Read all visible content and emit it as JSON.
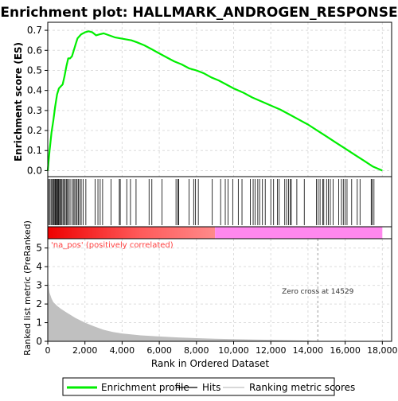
{
  "chart_data": {
    "type": "line",
    "title": "Enrichment plot: HALLMARK_ANDROGEN_RESPONSE",
    "colors": {
      "enrichment": "#00ee00",
      "hits": "#000000",
      "ranking": "#c0c0c0",
      "pos_band": "#ff0000",
      "neg_band": "#ff88ee",
      "zero_cross_line": "#9a9a9a",
      "pos_label": "#ff4040",
      "grid": "#dcdcdc"
    },
    "es_panel": {
      "ylabel": "Enrichment score (ES)",
      "ylim": [
        -0.03,
        0.74
      ],
      "yticks": [
        0.0,
        0.1,
        0.2,
        0.3,
        0.4,
        0.5,
        0.6,
        0.7
      ],
      "ytick_labels": [
        "0.0",
        "0.1",
        "0.2",
        "0.3",
        "0.4",
        "0.5",
        "0.6",
        "0.7"
      ],
      "x": [
        0,
        100,
        200,
        300,
        400,
        500,
        600,
        700,
        800,
        900,
        1000,
        1100,
        1200,
        1300,
        1400,
        1500,
        1600,
        1700,
        1800,
        1900,
        2000,
        2200,
        2400,
        2600,
        2800,
        3000,
        3300,
        3600,
        3900,
        4200,
        4500,
        4800,
        5200,
        5600,
        6000,
        6400,
        6800,
        7200,
        7600,
        8000,
        8400,
        8800,
        9200,
        9600,
        10000,
        10500,
        11000,
        11500,
        12000,
        12500,
        13000,
        13500,
        14000,
        14500,
        15000,
        15500,
        16000,
        16500,
        17000,
        17500,
        18000
      ],
      "y": [
        0.0,
        0.1,
        0.19,
        0.25,
        0.32,
        0.38,
        0.41,
        0.42,
        0.43,
        0.47,
        0.52,
        0.56,
        0.56,
        0.57,
        0.6,
        0.63,
        0.66,
        0.67,
        0.68,
        0.685,
        0.69,
        0.695,
        0.69,
        0.675,
        0.68,
        0.685,
        0.675,
        0.665,
        0.66,
        0.655,
        0.65,
        0.64,
        0.625,
        0.605,
        0.585,
        0.565,
        0.545,
        0.53,
        0.51,
        0.5,
        0.485,
        0.465,
        0.45,
        0.43,
        0.41,
        0.39,
        0.365,
        0.345,
        0.325,
        0.305,
        0.28,
        0.255,
        0.23,
        0.2,
        0.17,
        0.14,
        0.11,
        0.08,
        0.05,
        0.02,
        0.0
      ]
    },
    "hits": [
      50,
      120,
      180,
      240,
      300,
      340,
      390,
      430,
      470,
      520,
      560,
      600,
      650,
      700,
      760,
      820,
      880,
      940,
      1000,
      1060,
      1120,
      1200,
      1300,
      1380,
      1450,
      1520,
      1580,
      1650,
      1720,
      1800,
      1900,
      2050,
      2550,
      2700,
      2820,
      2950,
      3400,
      3850,
      3900,
      4250,
      4450,
      4750,
      5450,
      5600,
      6150,
      6900,
      7000,
      7050,
      7600,
      7850,
      7950,
      8100,
      8850,
      9300,
      9550,
      9700,
      9950,
      10250,
      10450,
      10900,
      11050,
      11150,
      11300,
      11400,
      11550,
      11700,
      12000,
      12150,
      12350,
      12450,
      12750,
      12850,
      12950,
      13050,
      13100,
      13400,
      13800,
      14450,
      14550,
      14650,
      14800,
      14850,
      15000,
      15100,
      15200,
      15350,
      15650,
      15800,
      15900,
      16000,
      16100,
      16350,
      16650,
      16800,
      17400,
      17450,
      17550
    ],
    "band": {
      "pos_end": 9000,
      "pos_label": "'na_pos' (positively correlated)"
    },
    "ranking_panel": {
      "ylabel": "Ranked list metric (PreRanked)",
      "ylim": [
        0,
        5.5
      ],
      "yticks": [
        0,
        1,
        2,
        3,
        4,
        5
      ],
      "ytick_labels": [
        "0",
        "1",
        "2",
        "3",
        "4",
        "5"
      ],
      "x": [
        0,
        50,
        100,
        200,
        300,
        500,
        700,
        1000,
        1500,
        2000,
        2500,
        3000,
        3500,
        4000,
        5000,
        6000,
        7000,
        8000,
        9000,
        10000,
        11000,
        12000,
        13000,
        14000,
        14529
      ],
      "y": [
        3.4,
        2.9,
        2.6,
        2.3,
        2.1,
        1.9,
        1.75,
        1.55,
        1.25,
        1.0,
        0.8,
        0.62,
        0.5,
        0.42,
        0.32,
        0.26,
        0.21,
        0.17,
        0.14,
        0.12,
        0.1,
        0.08,
        0.06,
        0.04,
        0.0
      ],
      "zero_cross": 14529,
      "zero_cross_label": "Zero cross at 14529"
    },
    "xaxis": {
      "xlabel": "Rank in Ordered Dataset",
      "xlim": [
        0,
        18500
      ],
      "xticks": [
        0,
        2000,
        4000,
        6000,
        8000,
        10000,
        12000,
        14000,
        16000,
        18000
      ],
      "xtick_labels": [
        "0",
        "2,000",
        "4,000",
        "6,000",
        "8,000",
        "10,000",
        "12,000",
        "14,000",
        "16,000",
        "18,000"
      ]
    },
    "legend": {
      "placement": "bottom",
      "items": [
        {
          "key": "enrichment",
          "label": "Enrichment profile"
        },
        {
          "key": "hits",
          "label": "Hits"
        },
        {
          "key": "ranking",
          "label": "Ranking metric scores"
        }
      ]
    }
  }
}
